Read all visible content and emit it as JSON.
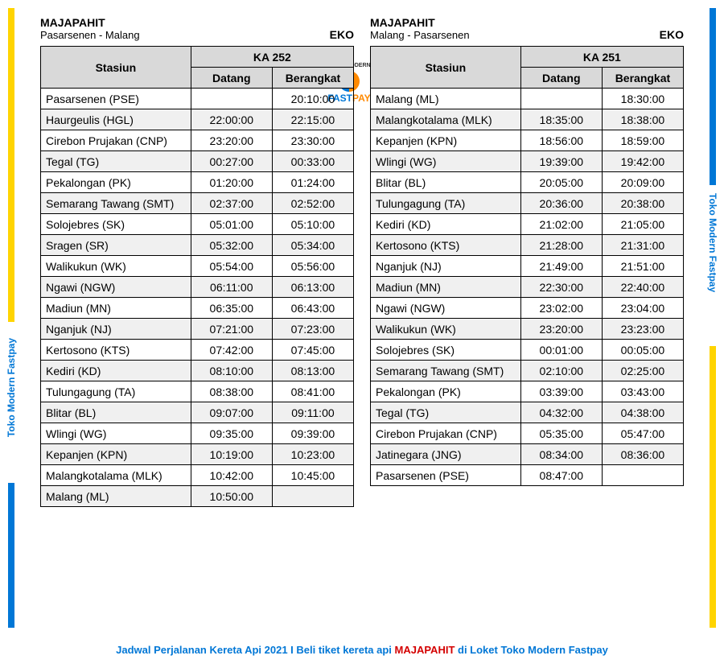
{
  "brand_label": "Toko Modern Fastpay",
  "logo": {
    "top": "TOKO MODERN",
    "fast": "FAST",
    "pay": "PAY"
  },
  "footer": {
    "pre": "Jadwal Perjalanan Kereta Api 2021 I Beli tiket kereta api ",
    "train": "MAJAPAHIT",
    "post": " di Loket Toko Modern Fastpay"
  },
  "colors": {
    "yellow": "#ffd400",
    "blue": "#0077d6",
    "red": "#d40000",
    "header_bg": "#d9d9d9",
    "shade_bg": "#f0f0f0"
  },
  "tables": [
    {
      "train_name": "MAJAPAHIT",
      "route": "Pasarsenen - Malang",
      "class": "EKO",
      "train_no": "KA 252",
      "col_station": "Stasiun",
      "col_arrive": "Datang",
      "col_depart": "Berangkat",
      "rows": [
        {
          "shade": false,
          "station": "Pasarsenen (PSE)",
          "arrive": "",
          "depart": "20:10:00"
        },
        {
          "shade": true,
          "station": "Haurgeulis (HGL)",
          "arrive": "22:00:00",
          "depart": "22:15:00"
        },
        {
          "shade": false,
          "station": "Cirebon Prujakan (CNP)",
          "arrive": "23:20:00",
          "depart": "23:30:00"
        },
        {
          "shade": true,
          "station": "Tegal (TG)",
          "arrive": "00:27:00",
          "depart": "00:33:00"
        },
        {
          "shade": false,
          "station": "Pekalongan (PK)",
          "arrive": "01:20:00",
          "depart": "01:24:00"
        },
        {
          "shade": true,
          "station": "Semarang Tawang (SMT)",
          "arrive": "02:37:00",
          "depart": "02:52:00"
        },
        {
          "shade": false,
          "station": "Solojebres (SK)",
          "arrive": "05:01:00",
          "depart": "05:10:00"
        },
        {
          "shade": true,
          "station": "Sragen (SR)",
          "arrive": "05:32:00",
          "depart": "05:34:00"
        },
        {
          "shade": false,
          "station": "Walikukun (WK)",
          "arrive": "05:54:00",
          "depart": "05:56:00"
        },
        {
          "shade": true,
          "station": "Ngawi (NGW)",
          "arrive": "06:11:00",
          "depart": "06:13:00"
        },
        {
          "shade": false,
          "station": "Madiun (MN)",
          "arrive": "06:35:00",
          "depart": "06:43:00"
        },
        {
          "shade": true,
          "station": "Nganjuk (NJ)",
          "arrive": "07:21:00",
          "depart": "07:23:00"
        },
        {
          "shade": false,
          "station": "Kertosono (KTS)",
          "arrive": "07:42:00",
          "depart": "07:45:00"
        },
        {
          "shade": true,
          "station": "Kediri (KD)",
          "arrive": "08:10:00",
          "depart": "08:13:00"
        },
        {
          "shade": false,
          "station": "Tulungagung (TA)",
          "arrive": "08:38:00",
          "depart": "08:41:00"
        },
        {
          "shade": true,
          "station": "Blitar (BL)",
          "arrive": "09:07:00",
          "depart": "09:11:00"
        },
        {
          "shade": false,
          "station": "Wlingi (WG)",
          "arrive": "09:35:00",
          "depart": "09:39:00"
        },
        {
          "shade": true,
          "station": "Kepanjen (KPN)",
          "arrive": "10:19:00",
          "depart": "10:23:00"
        },
        {
          "shade": false,
          "station": "Malangkotalama (MLK)",
          "arrive": "10:42:00",
          "depart": "10:45:00"
        },
        {
          "shade": true,
          "station": "Malang (ML)",
          "arrive": "10:50:00",
          "depart": ""
        }
      ]
    },
    {
      "train_name": "MAJAPAHIT",
      "route": "Malang - Pasarsenen",
      "class": "EKO",
      "train_no": "KA 251",
      "col_station": "Stasiun",
      "col_arrive": "Datang",
      "col_depart": "Berangkat",
      "rows": [
        {
          "shade": false,
          "station": "Malang (ML)",
          "arrive": "",
          "depart": "18:30:00"
        },
        {
          "shade": true,
          "station": "Malangkotalama (MLK)",
          "arrive": "18:35:00",
          "depart": "18:38:00"
        },
        {
          "shade": false,
          "station": "Kepanjen (KPN)",
          "arrive": "18:56:00",
          "depart": "18:59:00"
        },
        {
          "shade": true,
          "station": "Wlingi (WG)",
          "arrive": "19:39:00",
          "depart": "19:42:00"
        },
        {
          "shade": false,
          "station": "Blitar (BL)",
          "arrive": "20:05:00",
          "depart": "20:09:00"
        },
        {
          "shade": true,
          "station": "Tulungagung (TA)",
          "arrive": "20:36:00",
          "depart": "20:38:00"
        },
        {
          "shade": false,
          "station": "Kediri (KD)",
          "arrive": "21:02:00",
          "depart": "21:05:00"
        },
        {
          "shade": true,
          "station": "Kertosono (KTS)",
          "arrive": "21:28:00",
          "depart": "21:31:00"
        },
        {
          "shade": false,
          "station": "Nganjuk (NJ)",
          "arrive": "21:49:00",
          "depart": "21:51:00"
        },
        {
          "shade": true,
          "station": "Madiun (MN)",
          "arrive": "22:30:00",
          "depart": "22:40:00"
        },
        {
          "shade": false,
          "station": "Ngawi (NGW)",
          "arrive": "23:02:00",
          "depart": "23:04:00"
        },
        {
          "shade": true,
          "station": "Walikukun (WK)",
          "arrive": "23:20:00",
          "depart": "23:23:00"
        },
        {
          "shade": false,
          "station": "Solojebres (SK)",
          "arrive": "00:01:00",
          "depart": "00:05:00"
        },
        {
          "shade": true,
          "station": "Semarang Tawang (SMT)",
          "arrive": "02:10:00",
          "depart": "02:25:00"
        },
        {
          "shade": false,
          "station": "Pekalongan (PK)",
          "arrive": "03:39:00",
          "depart": "03:43:00"
        },
        {
          "shade": true,
          "station": "Tegal (TG)",
          "arrive": "04:32:00",
          "depart": "04:38:00"
        },
        {
          "shade": false,
          "station": "Cirebon Prujakan (CNP)",
          "arrive": "05:35:00",
          "depart": "05:47:00"
        },
        {
          "shade": true,
          "station": "Jatinegara (JNG)",
          "arrive": "08:34:00",
          "depart": "08:36:00"
        },
        {
          "shade": false,
          "station": "Pasarsenen (PSE)",
          "arrive": "08:47:00",
          "depart": ""
        }
      ]
    }
  ]
}
